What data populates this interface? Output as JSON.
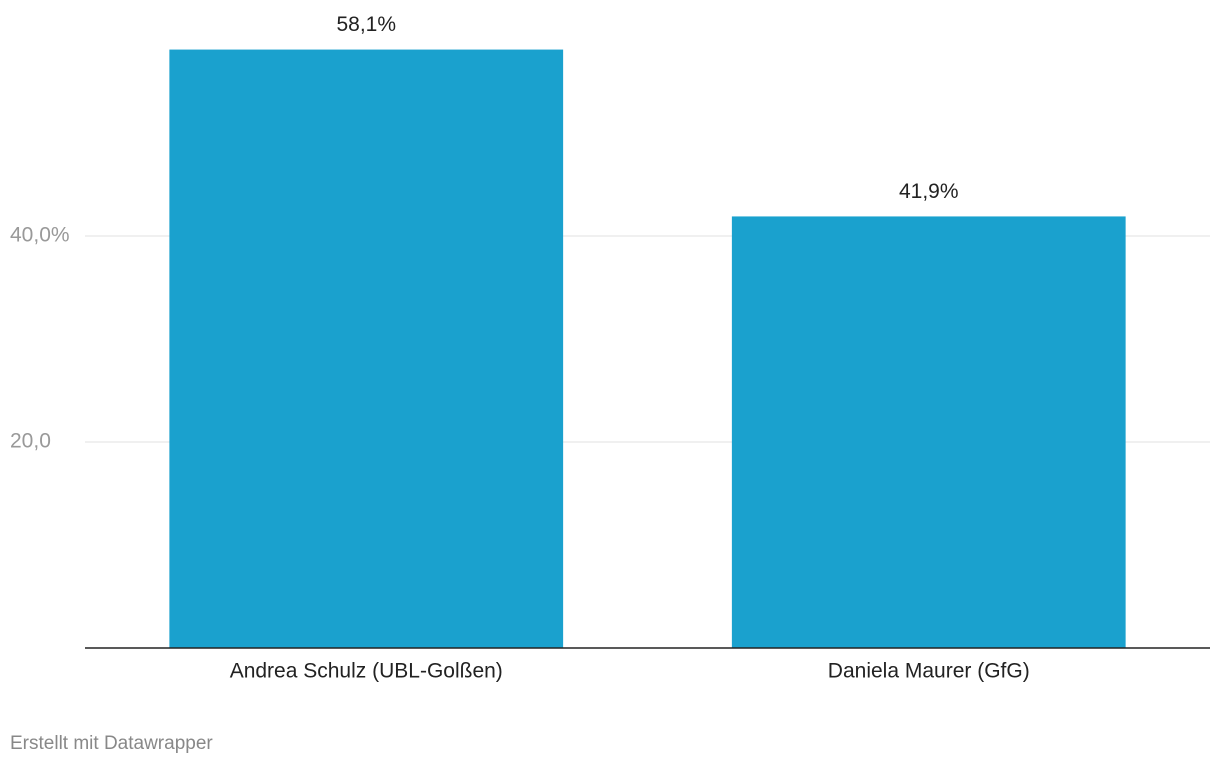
{
  "chart_data": {
    "type": "bar",
    "categories": [
      "Andrea Schulz (UBL-Golßen)",
      "Daniela Maurer (GfG)"
    ],
    "values": [
      58.1,
      41.9
    ],
    "value_labels": [
      "58,1%",
      "41,9%"
    ],
    "color": "#1aa1ce",
    "ylim": [
      0,
      60
    ],
    "yticks": [
      {
        "value": 20,
        "label": "20,0"
      },
      {
        "value": 40,
        "label": "40,0%"
      }
    ],
    "grid": true
  },
  "footer": "Erstellt mit Datawrapper"
}
